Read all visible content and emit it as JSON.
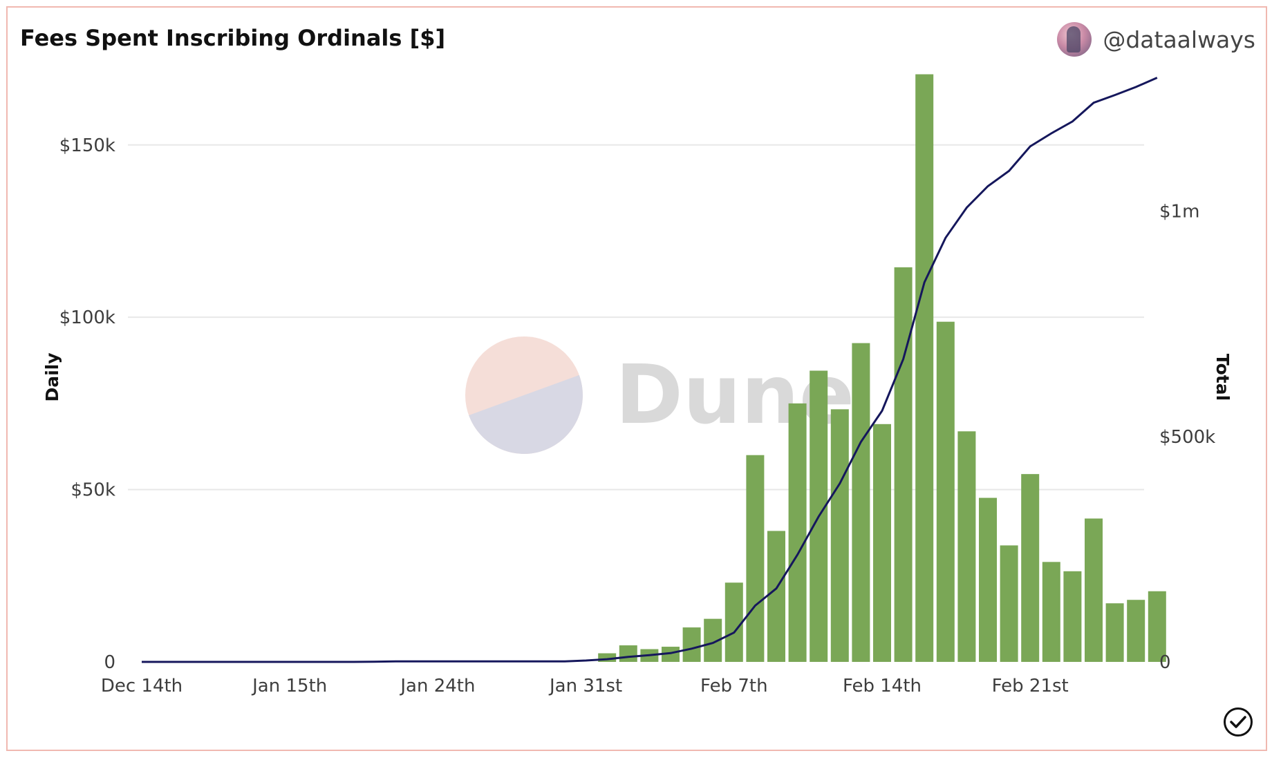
{
  "header": {
    "title": "Fees Spent Inscribing Ordinals [$]",
    "author_handle": "@dataalways"
  },
  "watermark": {
    "text": "Dune"
  },
  "colors": {
    "bar": "#7aa756",
    "line": "#15175c",
    "grid": "#e8e8e8",
    "border": "#f0b8b0"
  },
  "chart_data": {
    "type": "bar",
    "title": "Fees Spent Inscribing Ordinals [$]",
    "xlabel": "",
    "ylabel": "Daily",
    "y2label": "Total",
    "ylim": [
      0,
      170000
    ],
    "y2lim": [
      0,
      1300000
    ],
    "yticks": [
      {
        "value": 0,
        "label": "0"
      },
      {
        "value": 50000,
        "label": "$50k"
      },
      {
        "value": 100000,
        "label": "$100k"
      },
      {
        "value": 150000,
        "label": "$150k"
      }
    ],
    "y2ticks": [
      {
        "value": 0,
        "label": "0"
      },
      {
        "value": 500000,
        "label": "$500k"
      },
      {
        "value": 1000000,
        "label": "$1m"
      }
    ],
    "xticks": [
      "Dec 14th",
      "Jan 15th",
      "Jan 24th",
      "Jan 31st",
      "Feb 7th",
      "Feb 14th",
      "Feb 21st"
    ],
    "xtick_index": [
      0,
      7,
      14,
      21,
      28,
      35,
      42
    ],
    "grid": true,
    "legend": "none",
    "series": [
      {
        "kind": "bar",
        "axis": "left",
        "values": [
          0,
          0,
          0,
          0,
          0,
          0,
          0,
          0,
          0,
          0,
          0,
          0,
          0,
          0,
          0,
          0,
          0,
          0,
          0,
          0,
          0,
          0,
          2500,
          4800,
          3700,
          4400,
          10000,
          12500,
          23000,
          60000,
          38000,
          75000,
          84500,
          73300,
          92500,
          69000,
          114500,
          170500,
          98700,
          66900,
          47600,
          33800,
          54500,
          29000,
          26300,
          41600,
          17000,
          18000,
          20500
        ]
      },
      {
        "kind": "line",
        "axis": "right",
        "values": [
          0,
          0,
          0,
          0,
          0,
          0,
          0,
          0,
          0,
          0,
          0,
          500,
          1000,
          1000,
          1000,
          1000,
          1000,
          1000,
          1000,
          1000,
          1200,
          3000,
          6000,
          11000,
          15000,
          19500,
          29500,
          42000,
          65000,
          125000,
          163000,
          238000,
          322500,
          395800,
          488300,
          557300,
          671800,
          842300,
          941000,
          1007900,
          1055500,
          1089300,
          1143800,
          1172800,
          1199100,
          1240700,
          1257700,
          1275700,
          1296200
        ]
      }
    ]
  }
}
